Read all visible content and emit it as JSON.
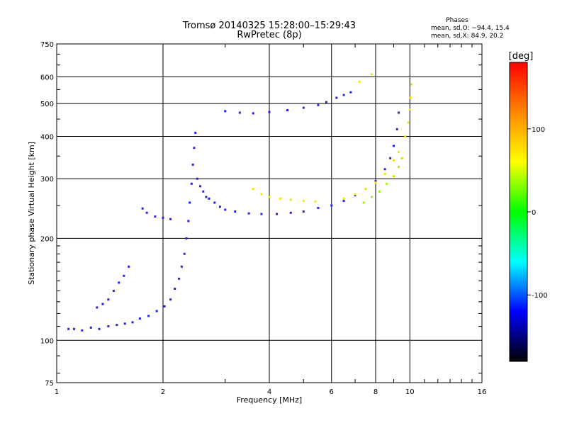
{
  "chart_data": {
    "type": "scatter",
    "title": "Tromsø 20140325 15:28:00–15:29:43",
    "subtitle": "RwPretec (8p)",
    "xlabel": "Frequency [MHz]",
    "ylabel": "Stationary phase Virtual Height [km]",
    "x_scale": "log",
    "y_scale": "log",
    "xlim": [
      1,
      16
    ],
    "ylim": [
      75,
      750
    ],
    "x_ticks": [
      1,
      2,
      4,
      6,
      8,
      10,
      16
    ],
    "y_ticks": [
      75,
      100,
      200,
      300,
      400,
      500,
      600,
      750
    ],
    "grid": true,
    "phase_box": {
      "title": "Phases",
      "line_o": "mean, sd,O: −94.4, 15.4",
      "line_x": "mean, sd,X:  84.9, 20.2"
    },
    "colorbar": {
      "label": "[deg]",
      "range": [
        -180,
        180
      ],
      "ticks": [
        100,
        0,
        -100
      ],
      "colors": [
        "#ff0000",
        "#ff8800",
        "#ffff00",
        "#00ff00",
        "#00ffff",
        "#0000ff",
        "#000000"
      ]
    },
    "series": [
      {
        "phase": -95,
        "color": "#2222ee",
        "points": [
          [
            1.08,
            108
          ],
          [
            1.12,
            108
          ],
          [
            1.18,
            107
          ],
          [
            1.25,
            109
          ],
          [
            1.32,
            108
          ],
          [
            1.4,
            110
          ],
          [
            1.48,
            111
          ],
          [
            1.56,
            112
          ],
          [
            1.64,
            113
          ],
          [
            1.72,
            116
          ],
          [
            1.82,
            118
          ],
          [
            1.92,
            122
          ],
          [
            2.02,
            126
          ],
          [
            2.1,
            132
          ],
          [
            2.16,
            142
          ],
          [
            2.22,
            152
          ],
          [
            2.26,
            165
          ],
          [
            2.3,
            180
          ],
          [
            2.33,
            200
          ],
          [
            2.36,
            225
          ],
          [
            2.38,
            255
          ],
          [
            2.41,
            290
          ],
          [
            2.43,
            330
          ],
          [
            2.45,
            370
          ],
          [
            2.47,
            410
          ],
          [
            1.3,
            125
          ],
          [
            1.35,
            128
          ],
          [
            1.4,
            132
          ],
          [
            1.45,
            140
          ],
          [
            1.5,
            148
          ],
          [
            1.55,
            155
          ],
          [
            1.6,
            165
          ],
          [
            1.75,
            245
          ],
          [
            1.8,
            238
          ],
          [
            1.9,
            232
          ],
          [
            2.0,
            230
          ],
          [
            2.1,
            228
          ],
          [
            2.5,
            300
          ],
          [
            2.55,
            285
          ],
          [
            2.6,
            275
          ],
          [
            2.65,
            265
          ],
          [
            2.7,
            262
          ],
          [
            2.8,
            255
          ],
          [
            2.9,
            248
          ],
          [
            3.0,
            243
          ],
          [
            3.2,
            240
          ],
          [
            3.5,
            237
          ],
          [
            3.8,
            236
          ],
          [
            4.2,
            236
          ],
          [
            4.6,
            238
          ],
          [
            5.0,
            240
          ],
          [
            5.5,
            246
          ],
          [
            6.0,
            250
          ],
          [
            6.5,
            258
          ],
          [
            7.0,
            268
          ],
          [
            7.5,
            280
          ],
          [
            8.0,
            295
          ],
          [
            8.5,
            320
          ],
          [
            8.8,
            345
          ],
          [
            9.0,
            375
          ],
          [
            9.2,
            420
          ],
          [
            9.3,
            470
          ],
          [
            3.0,
            475
          ],
          [
            3.3,
            470
          ],
          [
            3.6,
            468
          ],
          [
            4.0,
            472
          ],
          [
            4.5,
            478
          ],
          [
            5.0,
            486
          ],
          [
            5.5,
            495
          ],
          [
            5.8,
            505
          ],
          [
            6.2,
            520
          ],
          [
            6.5,
            530
          ],
          [
            6.8,
            540
          ]
        ]
      },
      {
        "phase": 90,
        "color": "#f0e800",
        "points": [
          [
            3.6,
            280
          ],
          [
            3.8,
            270
          ],
          [
            4.0,
            265
          ],
          [
            4.3,
            262
          ],
          [
            4.6,
            260
          ],
          [
            5.0,
            258
          ],
          [
            5.4,
            257
          ],
          [
            6.5,
            262
          ],
          [
            7.0,
            270
          ],
          [
            7.5,
            280
          ],
          [
            8.0,
            292
          ],
          [
            8.5,
            310
          ],
          [
            9.0,
            340
          ],
          [
            9.3,
            360
          ],
          [
            9.7,
            400
          ],
          [
            9.9,
            440
          ],
          [
            10.0,
            480
          ],
          [
            10.05,
            520
          ],
          [
            10.1,
            570
          ],
          [
            7.2,
            580
          ],
          [
            7.8,
            610
          ]
        ]
      },
      {
        "phase": 60,
        "color": "#a8f000",
        "points": [
          [
            7.4,
            255
          ],
          [
            7.8,
            265
          ],
          [
            8.2,
            275
          ],
          [
            8.6,
            290
          ],
          [
            9.0,
            305
          ],
          [
            9.3,
            325
          ],
          [
            9.5,
            345
          ]
        ]
      }
    ]
  }
}
